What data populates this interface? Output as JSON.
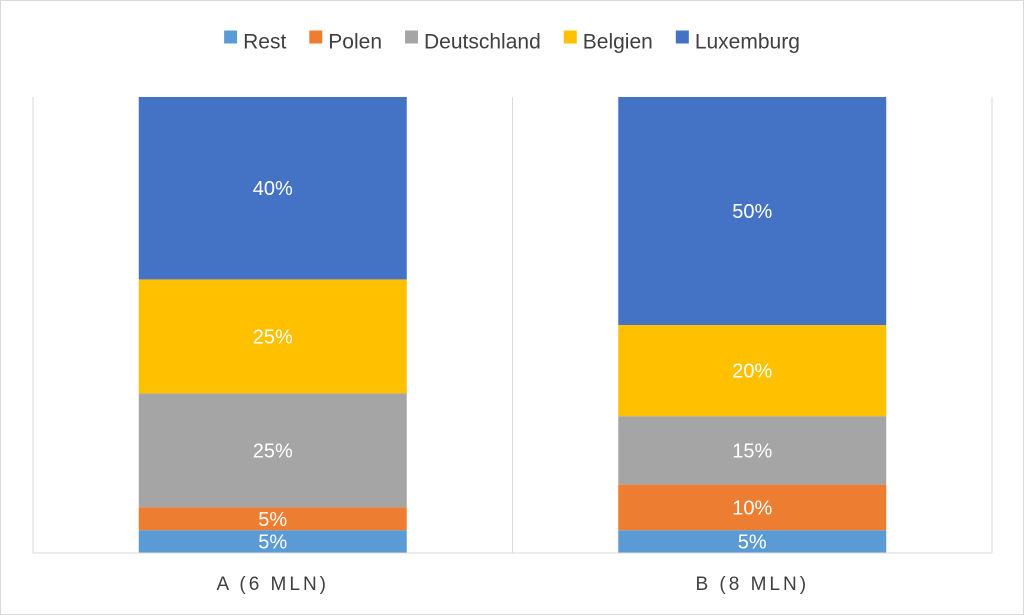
{
  "chart_data": {
    "type": "bar",
    "stacked": true,
    "normalized": true,
    "categories": [
      "A (6 MLN)",
      "B (8 MLN)"
    ],
    "series": [
      {
        "name": "Rest",
        "values": [
          5,
          5
        ],
        "labels": [
          "5%",
          "5%"
        ],
        "color": "#5B9BD5"
      },
      {
        "name": "Polen",
        "values": [
          5,
          10
        ],
        "labels": [
          "5%",
          "10%"
        ],
        "color": "#ED7D31"
      },
      {
        "name": "Deutschland",
        "values": [
          25,
          15
        ],
        "labels": [
          "25%",
          "15%"
        ],
        "color": "#A5A5A5"
      },
      {
        "name": "Belgien",
        "values": [
          25,
          20
        ],
        "labels": [
          "25%",
          "20%"
        ],
        "color": "#FFC000"
      },
      {
        "name": "Luxemburg",
        "values": [
          40,
          50
        ],
        "labels": [
          "40%",
          "50%"
        ],
        "color": "#4472C4"
      }
    ],
    "legend_position": "top",
    "grid": false
  }
}
